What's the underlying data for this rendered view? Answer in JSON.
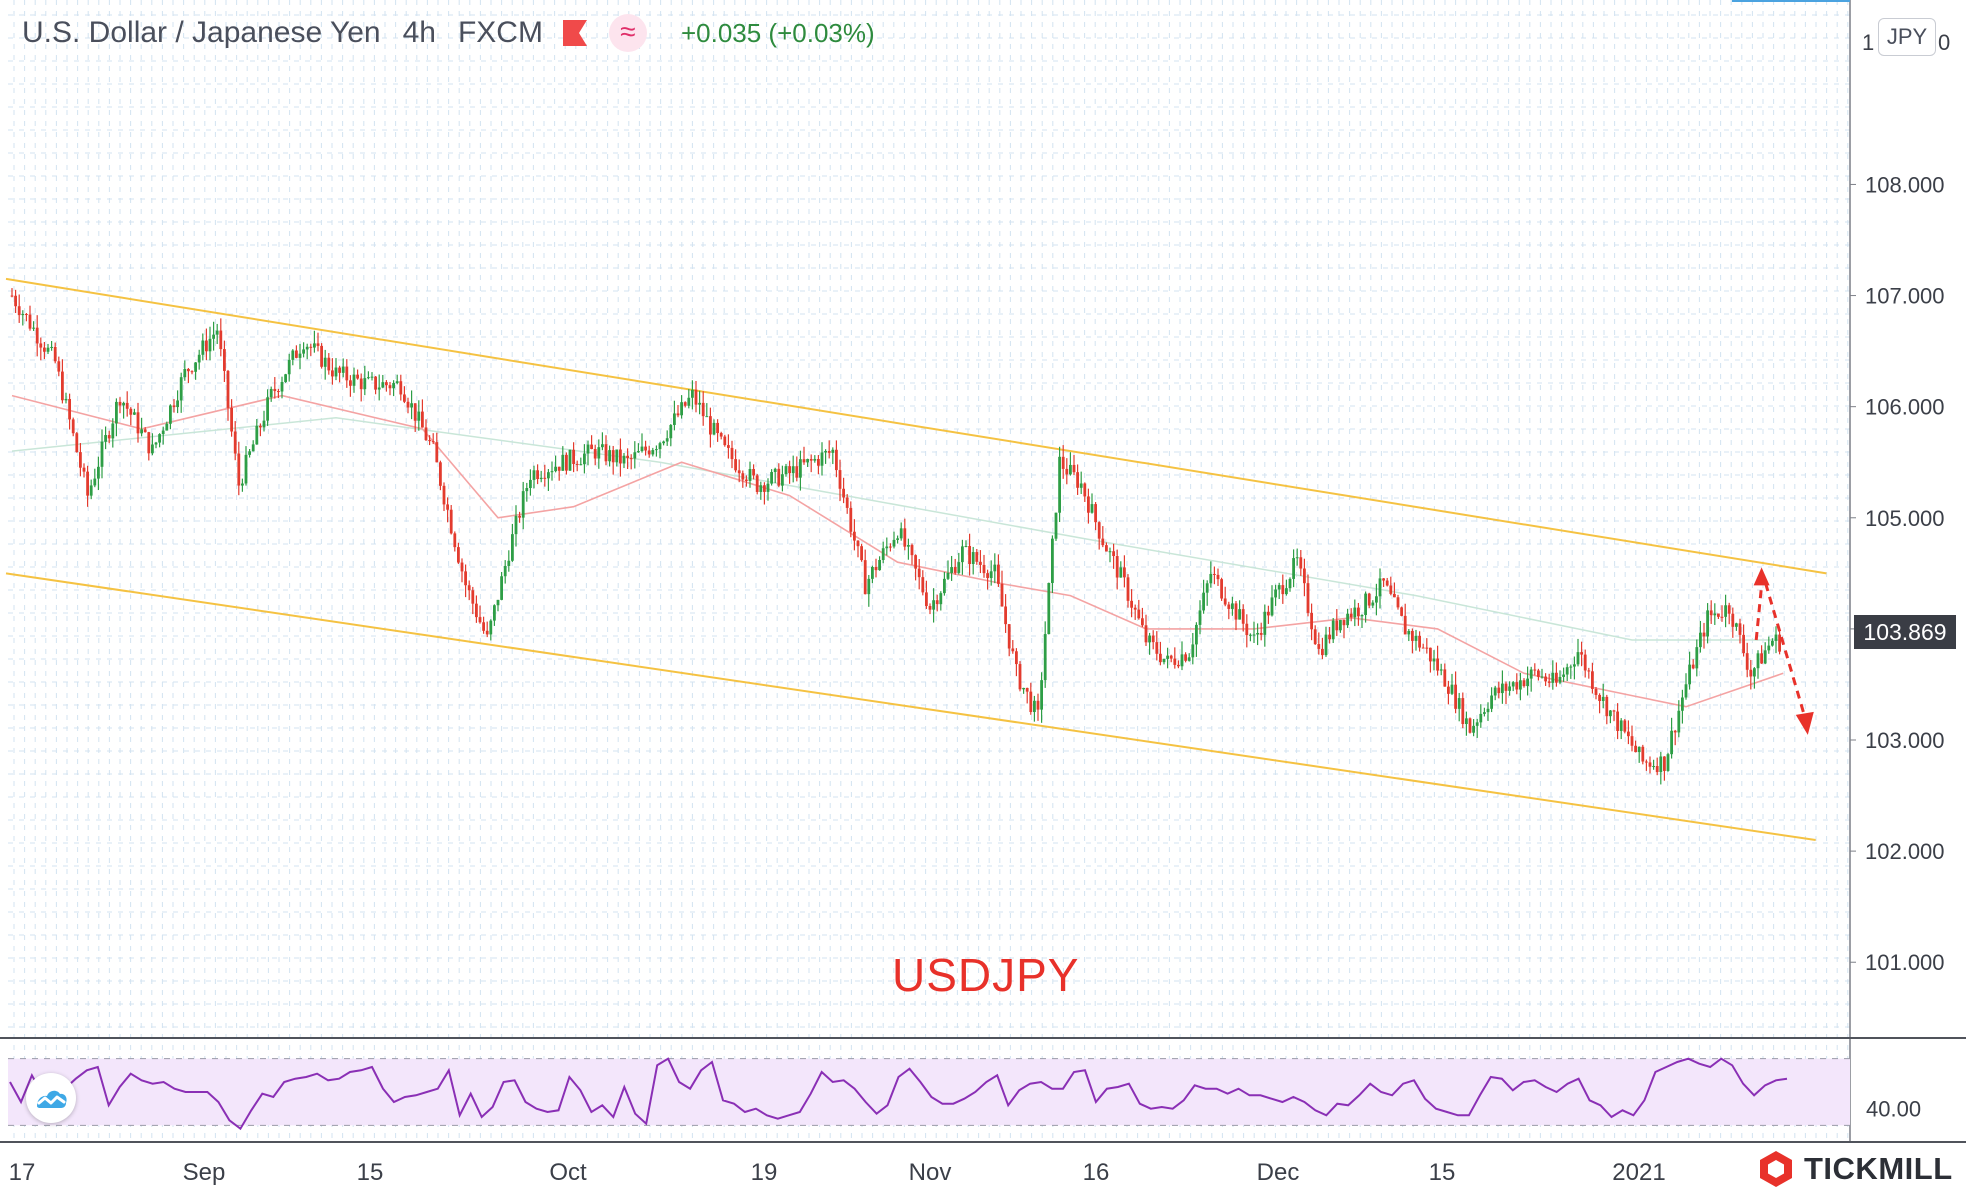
{
  "header": {
    "pair": "U.S. Dollar / Japanese Yen",
    "interval": "4h",
    "source": "FXCM",
    "change": "+0.035 (+0.03%)"
  },
  "currency": "JPY",
  "current_price": "103.869",
  "symbol_label": "USDJPY",
  "brand": "TICKMILL",
  "colors": {
    "channel": "#f5c242",
    "bull": "#2e9e46",
    "bear": "#e33b2e",
    "ma_fast": "#f4a3a3",
    "ma_slow": "#c9e6d8",
    "rsi_line": "#8a2fb5",
    "rsi_band": "#f3e6fb",
    "forecast": "#e8312a",
    "grid": "#d3e3f1"
  },
  "chart_data": {
    "type": "candlestick",
    "price_axis": {
      "min": 100.3,
      "max": 109.3,
      "ticks": [
        "108.000",
        "107.000",
        "106.000",
        "105.000",
        "104.000",
        "103.000",
        "102.000",
        "101.000"
      ],
      "top_partial": "1",
      "top_partial_right": "0"
    },
    "time_axis": {
      "labels": [
        "17",
        "Sep",
        "15",
        "Oct",
        "19",
        "Nov",
        "16",
        "Dec",
        "15",
        "2021"
      ]
    },
    "price_path": [
      [
        0,
        107.0
      ],
      [
        4,
        106.4
      ],
      [
        7,
        105.2
      ],
      [
        10,
        106.1
      ],
      [
        13,
        105.6
      ],
      [
        16,
        106.3
      ],
      [
        19,
        106.7
      ],
      [
        21,
        105.3
      ],
      [
        24,
        106.1
      ],
      [
        27,
        106.6
      ],
      [
        30,
        106.3
      ],
      [
        33,
        106.2
      ],
      [
        36,
        106.2
      ],
      [
        39,
        105.6
      ],
      [
        42,
        104.4
      ],
      [
        44,
        103.9
      ],
      [
        46,
        104.7
      ],
      [
        48,
        105.4
      ],
      [
        51,
        105.5
      ],
      [
        54,
        105.6
      ],
      [
        57,
        105.5
      ],
      [
        60,
        105.7
      ],
      [
        63,
        106.1
      ],
      [
        66,
        105.6
      ],
      [
        69,
        105.3
      ],
      [
        72,
        105.4
      ],
      [
        76,
        105.6
      ],
      [
        79,
        104.4
      ],
      [
        82,
        104.9
      ],
      [
        85,
        104.2
      ],
      [
        88,
        104.7
      ],
      [
        91,
        104.5
      ],
      [
        93,
        103.6
      ],
      [
        95,
        103.2
      ],
      [
        97,
        105.5
      ],
      [
        99,
        105.3
      ],
      [
        101,
        104.8
      ],
      [
        103,
        104.4
      ],
      [
        105,
        103.9
      ],
      [
        107,
        103.7
      ],
      [
        109,
        103.8
      ],
      [
        111,
        104.5
      ],
      [
        113,
        104.2
      ],
      [
        115,
        103.9
      ],
      [
        117,
        104.3
      ],
      [
        119,
        104.6
      ],
      [
        121,
        103.8
      ],
      [
        123,
        104.1
      ],
      [
        125,
        104.2
      ],
      [
        127,
        104.4
      ],
      [
        129,
        104.0
      ],
      [
        131,
        103.8
      ],
      [
        133,
        103.5
      ],
      [
        135,
        103.1
      ],
      [
        137,
        103.4
      ],
      [
        139,
        103.5
      ],
      [
        141,
        103.6
      ],
      [
        143,
        103.5
      ],
      [
        145,
        103.8
      ],
      [
        147,
        103.4
      ],
      [
        149,
        103.1
      ],
      [
        151,
        102.8
      ],
      [
        153,
        102.8
      ],
      [
        155,
        103.5
      ],
      [
        157,
        104.1
      ],
      [
        159,
        104.2
      ],
      [
        161,
        103.6
      ],
      [
        163,
        103.9
      ],
      [
        164,
        103.87
      ]
    ],
    "ma_fast_path": [
      [
        0,
        106.1
      ],
      [
        12,
        105.8
      ],
      [
        25,
        106.1
      ],
      [
        38,
        105.8
      ],
      [
        45,
        105.0
      ],
      [
        52,
        105.1
      ],
      [
        62,
        105.5
      ],
      [
        72,
        105.2
      ],
      [
        82,
        104.6
      ],
      [
        92,
        104.4
      ],
      [
        98,
        104.3
      ],
      [
        105,
        104.0
      ],
      [
        115,
        104.0
      ],
      [
        124,
        104.1
      ],
      [
        132,
        104.0
      ],
      [
        140,
        103.6
      ],
      [
        150,
        103.4
      ],
      [
        155,
        103.3
      ],
      [
        164,
        103.6
      ]
    ],
    "ma_slow_path": [
      [
        0,
        105.6
      ],
      [
        30,
        105.9
      ],
      [
        60,
        105.5
      ],
      [
        100,
        104.8
      ],
      [
        130,
        104.3
      ],
      [
        150,
        103.9
      ],
      [
        164,
        103.9
      ]
    ],
    "channel_upper": [
      [
        0,
        107.15
      ],
      [
        168,
        104.5
      ]
    ],
    "channel_lower": [
      [
        0,
        104.5
      ],
      [
        167,
        102.1
      ]
    ],
    "forecast_points": [
      [
        161.5,
        103.9
      ],
      [
        162,
        104.5
      ],
      [
        166,
        103.1
      ]
    ],
    "rsi": {
      "band_upper": 70,
      "band_lower": 30,
      "tick": "40.00",
      "tick_value": 40,
      "range": [
        20,
        80
      ],
      "values": [
        56,
        44,
        60,
        48,
        37,
        52,
        58,
        63,
        65,
        42,
        53,
        61,
        57,
        55,
        56,
        52,
        50,
        50,
        50,
        44,
        33,
        28,
        39,
        49,
        47,
        56,
        58,
        59,
        61,
        57,
        58,
        62,
        63,
        65,
        52,
        44,
        47,
        48,
        50,
        52,
        63,
        36,
        49,
        35,
        41,
        56,
        57,
        44,
        40,
        38,
        39,
        59,
        51,
        38,
        42,
        35,
        53,
        37,
        31,
        66,
        70,
        56,
        52,
        63,
        68,
        45,
        43,
        38,
        40,
        36,
        34,
        36,
        38,
        49,
        62,
        56,
        57,
        52,
        44,
        37,
        42,
        59,
        64,
        56,
        47,
        43,
        43,
        46,
        50,
        56,
        60,
        42,
        51,
        55,
        56,
        52,
        52,
        62,
        63,
        44,
        52,
        53,
        55,
        43,
        40,
        41,
        40,
        45,
        54,
        52,
        52,
        49,
        52,
        48,
        48,
        46,
        44,
        47,
        44,
        39,
        36,
        43,
        42,
        48,
        55,
        50,
        48,
        55,
        57,
        46,
        40,
        38,
        36,
        36,
        48,
        59,
        58,
        51,
        56,
        57,
        53,
        50,
        55,
        58,
        45,
        42,
        35,
        39,
        36,
        45,
        62,
        65,
        68,
        70,
        67,
        65,
        70,
        66,
        55,
        48,
        54,
        57,
        58
      ]
    }
  }
}
